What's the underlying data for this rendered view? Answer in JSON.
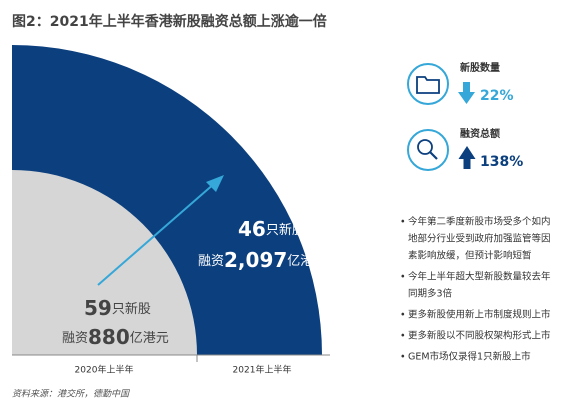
{
  "title": "图2：2021年上半年香港新股融资总额上涨逾一倍",
  "big": {
    "count": "46",
    "count_unit": "只新股",
    "fund_prefix": "融资",
    "fund": "2,097",
    "fund_unit": "亿港元",
    "period": "2021年上半年"
  },
  "small": {
    "count": "59",
    "count_unit": "只新股",
    "fund_prefix": "融资",
    "fund": "880",
    "fund_unit": "亿港元",
    "period": "2020年上半年"
  },
  "kpis": [
    {
      "label": "新股数量",
      "change": "22%"
    },
    {
      "label": "融资总额",
      "change": "138%"
    }
  ],
  "bullets": [
    [
      "今年第二季度新股市场受多个如内",
      "地部分行业受到政府加强监管等因",
      "素影响放缓，但预计影响短暂"
    ],
    [
      "今年上半年超大型新股数量较去年",
      "同期多3倍"
    ],
    [
      "更多新股使用新上市制度规则上市"
    ],
    [
      "更多新股以不同股权架构形式上市"
    ],
    [
      "GEM市场仅录得1只新股上市"
    ]
  ],
  "source": "资料来源：港交所，德勤中国"
}
